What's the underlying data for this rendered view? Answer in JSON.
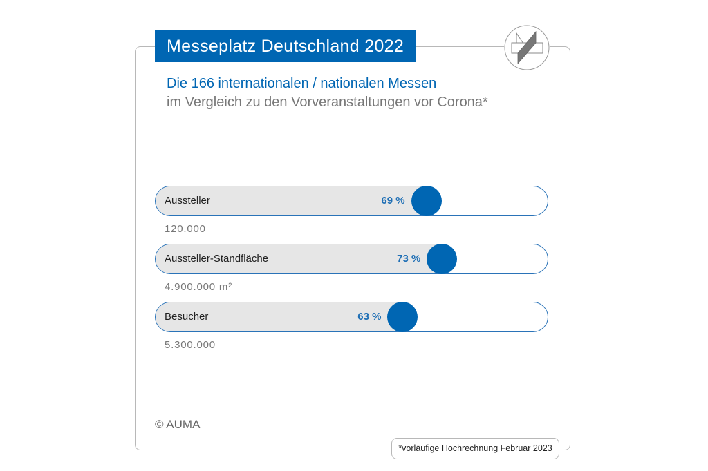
{
  "header": {
    "title": "Messeplatz Deutschland 2022",
    "subtitle_line1": "Die 166 internationalen / nationalen Messen",
    "subtitle_line2": "im Vergleich zu den Vorveranstaltungen vor Corona*",
    "logo_icon": "auma-logo-icon"
  },
  "chart_data": {
    "type": "bar",
    "orientation": "horizontal",
    "xlim": [
      0,
      100
    ],
    "categories": [
      "Aussteller",
      "Aussteller-Standfläche",
      "Besucher"
    ],
    "values": [
      69,
      73,
      63
    ],
    "value_labels": [
      "69 %",
      "73 %",
      "63 %"
    ],
    "absolute_labels": [
      "120.000",
      "4.900.000 m²",
      "5.300.000"
    ],
    "colors": {
      "marker": "#0066b3",
      "fill": "#e6e6e6",
      "border": "#2a73b8",
      "label": "#1f6fb5"
    }
  },
  "footer": {
    "copyright": "© AUMA",
    "note": "*vorläufige Hochrechnung Februar 2023"
  }
}
